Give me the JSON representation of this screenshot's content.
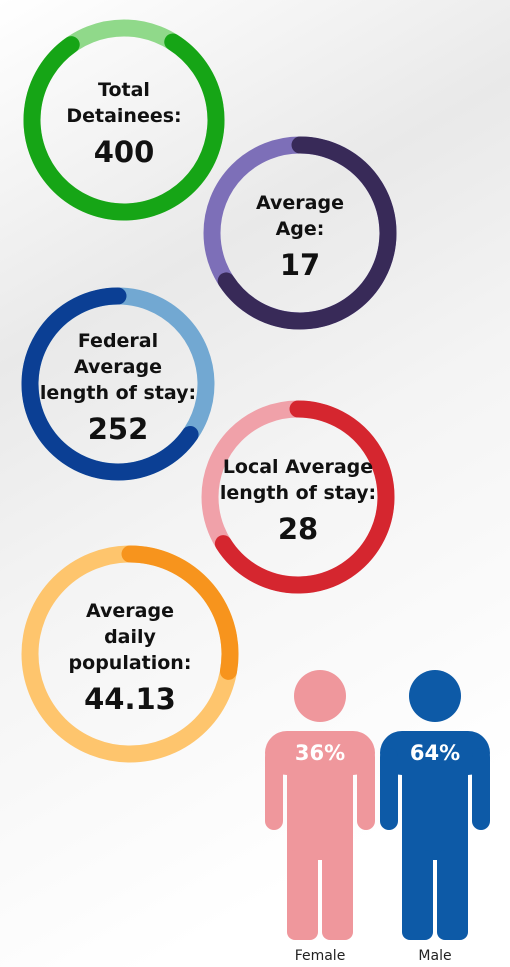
{
  "stats": [
    {
      "label": [
        "Total",
        "Detainees:"
      ],
      "value": "400"
    },
    {
      "label": [
        "Average",
        "Age:"
      ],
      "value": "17"
    },
    {
      "label": [
        "Federal",
        "Average",
        "length of stay:"
      ],
      "value": "252"
    },
    {
      "label": [
        "Local Average",
        "length of stay:"
      ],
      "value": "28"
    },
    {
      "label": [
        "Average",
        "daily",
        "population:"
      ],
      "value": "44.13"
    }
  ],
  "gender": [
    {
      "name": "Female",
      "percent": "36%"
    },
    {
      "name": "Male",
      "percent": "64%"
    }
  ]
}
